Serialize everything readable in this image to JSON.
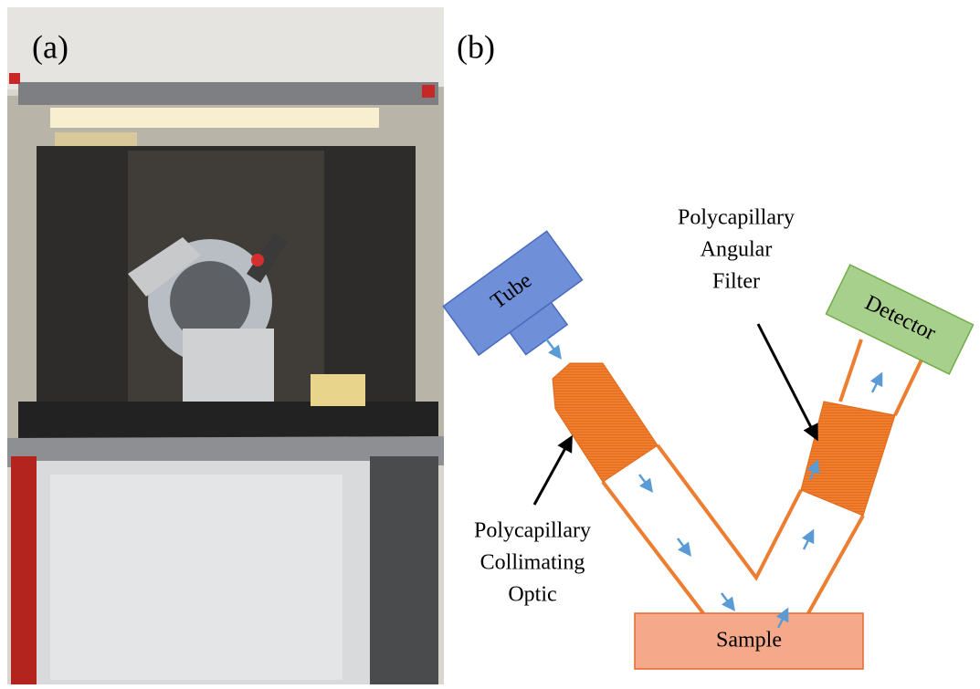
{
  "panels": {
    "a": {
      "label": "(a)"
    },
    "b": {
      "label": "(b)",
      "nodes": [
        {
          "label": "Tube"
        },
        {
          "label": "Detector"
        },
        {
          "label": "Sample"
        }
      ],
      "annotations": [
        {
          "lines": [
            "Polycapillary",
            "Angular",
            "Filter"
          ]
        },
        {
          "lines": [
            "Polycapillary",
            "Collimating",
            "Optic"
          ]
        }
      ]
    }
  }
}
